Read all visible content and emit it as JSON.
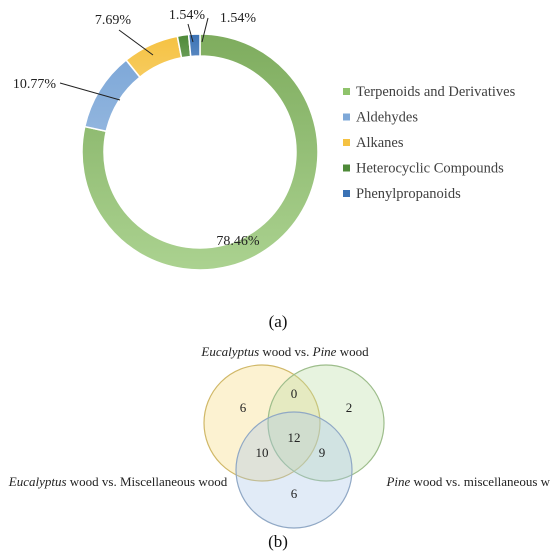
{
  "chart_data": [
    {
      "type": "pie",
      "donut": true,
      "panel_label": "(a)",
      "categories": [
        "Terpenoids and Derivatives",
        "Aldehydes",
        "Alkanes",
        "Heterocyclic Compounds",
        "Phenylpropanoids"
      ],
      "values": [
        78.46,
        10.77,
        7.69,
        1.54,
        1.54
      ],
      "data_labels": [
        "78.46%",
        "10.77%",
        "7.69%",
        "1.54%",
        "1.54%"
      ],
      "colors": [
        "#8fc36b",
        "#7ea8d8",
        "#f5c242",
        "#4e8a38",
        "#3a72b5"
      ],
      "legend_position": "right"
    },
    {
      "type": "venn",
      "panel_label": "(b)",
      "sets": [
        {
          "italic": "Eucalyptus",
          "rest": " wood vs. ",
          "italic2": "Pine",
          "rest2": " wood",
          "color": "#f5d97a"
        },
        {
          "italic": "Pine",
          "rest": " wood vs. miscellaneous wood",
          "color": "#b9dea3"
        },
        {
          "italic": "Eucalyptus",
          "rest": " wood  vs. Miscellaneous wood",
          "color": "#a9c6e8"
        }
      ],
      "regions": {
        "only_a": "6",
        "a_b": "0",
        "only_b": "2",
        "a_c": "10",
        "all": "12",
        "b_c": "9",
        "only_c": "6"
      }
    }
  ]
}
